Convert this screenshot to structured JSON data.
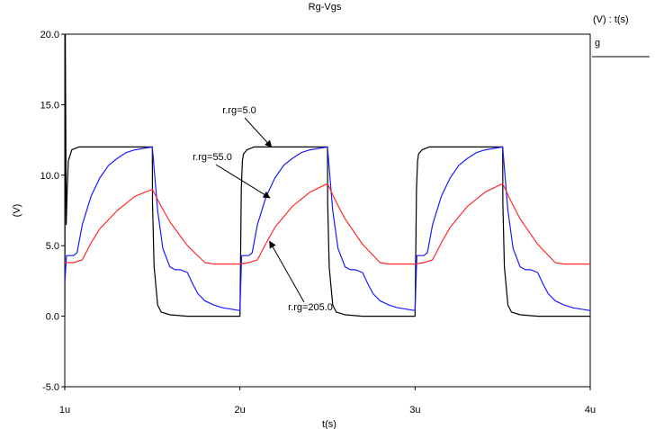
{
  "chart_data": {
    "type": "line",
    "title": "Rg-Vgs",
    "xlabel": "t(s)",
    "ylabel": "(V)",
    "legend_header": "(V) : t(s)",
    "legend_entry": "g",
    "xlim": [
      1,
      4
    ],
    "ylim": [
      -5,
      20
    ],
    "xticks": [
      1,
      2,
      3,
      4
    ],
    "xtick_labels": [
      "1u",
      "2u",
      "3u",
      "4u"
    ],
    "yticks": [
      -5,
      0,
      5,
      10,
      15,
      20
    ],
    "ytick_labels": [
      "-5.0",
      "0.0",
      "5.0",
      "10.0",
      "15.0",
      "20.0"
    ],
    "series": [
      {
        "name": "r.rg=5.0",
        "color": "#000000",
        "x": [
          1.0,
          1.003,
          1.008,
          1.014,
          1.02,
          1.04,
          1.08,
          1.5,
          1.501,
          1.51,
          1.53,
          1.55,
          1.6,
          1.7,
          2.0,
          2.008,
          2.014,
          2.02,
          2.04,
          2.08,
          2.5,
          2.501,
          2.51,
          2.53,
          2.55,
          2.6,
          2.7,
          3.0,
          3.008,
          3.014,
          3.02,
          3.04,
          3.08,
          3.5,
          3.501,
          3.51,
          3.53,
          3.55,
          3.6,
          3.7,
          4.0
        ],
        "y": [
          0.0,
          20.0,
          6.5,
          9.0,
          11.0,
          11.8,
          12.0,
          12.0,
          8.0,
          3.5,
          0.8,
          0.3,
          0.1,
          0.0,
          0.0,
          9.0,
          11.0,
          11.5,
          11.8,
          12.0,
          12.0,
          8.0,
          3.5,
          0.8,
          0.3,
          0.1,
          0.0,
          0.0,
          9.0,
          11.0,
          11.5,
          11.8,
          12.0,
          12.0,
          8.0,
          3.5,
          0.8,
          0.3,
          0.1,
          0.0,
          0.0
        ]
      },
      {
        "name": "r.rg=55.0",
        "color": "#1a1aff",
        "x": [
          1.0,
          1.01,
          1.03,
          1.05,
          1.07,
          1.1,
          1.15,
          1.2,
          1.25,
          1.3,
          1.35,
          1.4,
          1.45,
          1.5,
          1.53,
          1.56,
          1.6,
          1.63,
          1.66,
          1.7,
          1.73,
          1.76,
          1.8,
          1.85,
          1.9,
          2.0,
          2.01,
          2.03,
          2.05,
          2.07,
          2.1,
          2.15,
          2.2,
          2.25,
          2.3,
          2.35,
          2.4,
          2.45,
          2.5,
          2.53,
          2.56,
          2.6,
          2.63,
          2.66,
          2.7,
          2.73,
          2.76,
          2.8,
          2.85,
          2.9,
          3.0,
          3.01,
          3.03,
          3.05,
          3.07,
          3.1,
          3.15,
          3.2,
          3.25,
          3.3,
          3.35,
          3.4,
          3.45,
          3.5,
          3.53,
          3.56,
          3.6,
          3.63,
          3.66,
          3.7,
          3.73,
          3.76,
          3.8,
          3.85,
          3.9,
          4.0
        ],
        "y": [
          2.3,
          4.3,
          4.3,
          4.3,
          4.5,
          6.5,
          8.5,
          9.8,
          10.7,
          11.2,
          11.6,
          11.8,
          11.9,
          12.0,
          7.5,
          4.8,
          3.5,
          3.3,
          3.3,
          3.1,
          2.3,
          1.6,
          1.1,
          0.8,
          0.6,
          0.4,
          4.3,
          4.3,
          4.3,
          4.5,
          6.5,
          8.5,
          9.8,
          10.7,
          11.2,
          11.6,
          11.8,
          11.9,
          12.0,
          7.5,
          4.8,
          3.5,
          3.3,
          3.3,
          3.1,
          2.3,
          1.6,
          1.1,
          0.8,
          0.6,
          0.4,
          4.3,
          4.3,
          4.3,
          4.5,
          6.5,
          8.5,
          9.8,
          10.7,
          11.2,
          11.6,
          11.8,
          11.9,
          12.0,
          7.5,
          4.8,
          3.5,
          3.3,
          3.3,
          3.1,
          2.3,
          1.6,
          1.1,
          0.8,
          0.6,
          0.4
        ]
      },
      {
        "name": "r.rg=205.0",
        "color": "#ff2a2a",
        "x": [
          1.0,
          1.05,
          1.1,
          1.15,
          1.2,
          1.3,
          1.4,
          1.5,
          1.55,
          1.6,
          1.7,
          1.8,
          1.85,
          2.0,
          2.05,
          2.1,
          2.15,
          2.2,
          2.3,
          2.4,
          2.5,
          2.55,
          2.6,
          2.7,
          2.8,
          2.85,
          3.0,
          3.05,
          3.1,
          3.15,
          3.2,
          3.3,
          3.4,
          3.5,
          3.55,
          3.6,
          3.7,
          3.8,
          3.85,
          4.0
        ],
        "y": [
          3.8,
          3.8,
          4.0,
          5.2,
          6.2,
          7.5,
          8.5,
          9.0,
          7.8,
          6.7,
          5.0,
          3.8,
          3.7,
          3.7,
          3.8,
          4.0,
          5.2,
          6.3,
          7.8,
          8.8,
          9.4,
          8.1,
          6.9,
          5.1,
          3.8,
          3.7,
          3.7,
          3.8,
          4.0,
          5.2,
          6.3,
          7.8,
          8.8,
          9.4,
          8.1,
          6.9,
          5.1,
          3.8,
          3.7,
          3.7
        ]
      }
    ],
    "annotations": [
      {
        "text": "r.rg=5.0",
        "target_x": 2.18,
        "target_y": 12.0
      },
      {
        "text": "r.rg=55.0",
        "target_x": 2.17,
        "target_y": 8.4
      },
      {
        "text": "r.rg=205.0",
        "target_x": 2.17,
        "target_y": 5.3
      }
    ]
  }
}
